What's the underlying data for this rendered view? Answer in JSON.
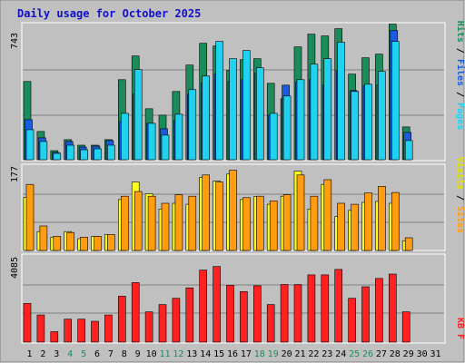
{
  "chart_data": {
    "type": "bar",
    "title": "Daily usage for October 2025",
    "x": {
      "categories": [
        "1",
        "2",
        "3",
        "4",
        "5",
        "6",
        "7",
        "8",
        "9",
        "10",
        "11",
        "12",
        "13",
        "14",
        "15",
        "16",
        "17",
        "18",
        "19",
        "20",
        "21",
        "22",
        "23",
        "24",
        "25",
        "26",
        "27",
        "28",
        "29",
        "30",
        "31"
      ],
      "weekend_days": [
        "4",
        "5",
        "11",
        "12",
        "18",
        "19",
        "25",
        "26"
      ]
    },
    "panels": [
      {
        "id": "hits-files-pages",
        "ymax_label": "743",
        "ymax": 743,
        "ylim": [
          0,
          743
        ],
        "axis_label_parts": [
          "Pages",
          "Files",
          "Hits"
        ],
        "series": [
          {
            "name": "Hits",
            "color": "#1a8c5a",
            "values": [
              430,
              155,
              50,
              110,
              80,
              80,
              110,
              440,
              570,
              280,
              245,
              375,
              520,
              640,
              625,
              490,
              550,
              555,
              420,
              335,
              620,
              690,
              680,
              720,
              470,
              560,
              580,
              745,
              180,
              0,
              0
            ]
          },
          {
            "name": "Files",
            "color": "#1a5ce0",
            "values": [
              220,
              120,
              40,
              100,
              70,
              75,
              105,
              210,
              360,
              200,
              170,
              215,
              360,
              420,
              470,
              430,
              440,
              475,
              245,
              410,
              425,
              440,
              410,
              490,
              380,
              405,
              410,
              710,
              150,
              0,
              0
            ]
          },
          {
            "name": "Pages",
            "color": "#1ed2f0",
            "values": [
              165,
              100,
              35,
              80,
              55,
              60,
              80,
              255,
              495,
              200,
              135,
              250,
              385,
              460,
              650,
              555,
              600,
              505,
              255,
              350,
              440,
              525,
              555,
              645,
              375,
              415,
              485,
              650,
              105,
              0,
              0
            ]
          }
        ]
      },
      {
        "id": "sites-visits",
        "ymax_label": "177",
        "ymax": 177,
        "ylim": [
          0,
          177
        ],
        "axis_label_parts": [
          "Sites",
          "Visits"
        ],
        "series": [
          {
            "name": "Visits",
            "color": "#ffff20",
            "values": [
              113,
              40,
              28,
              40,
              25,
              30,
              34,
              108,
              145,
              120,
              88,
              100,
              98,
              155,
              147,
              162,
              108,
              114,
              98,
              115,
              168,
              88,
              140,
              72,
              85,
              102,
              104,
              100,
              20,
              0,
              0
            ]
          },
          {
            "name": "Sites",
            "color": "#ff9c10",
            "values": [
              140,
              52,
              30,
              38,
              28,
              30,
              34,
              115,
              125,
              115,
              100,
              118,
              115,
              160,
              145,
              170,
              112,
              115,
              105,
              118,
              160,
              115,
              150,
              100,
              98,
              122,
              136,
              123,
              27,
              0,
              0
            ]
          }
        ]
      },
      {
        "id": "kbytes",
        "ymax_label": "4085",
        "ymax": 4085,
        "ylim": [
          0,
          4085
        ],
        "axis_label_parts": [
          "KB F"
        ],
        "series": [
          {
            "name": "KB F",
            "color": "#ff2020",
            "values": [
              1850,
              1300,
              500,
              1100,
              1100,
              1000,
              1300,
              2200,
              2850,
              1450,
              1800,
              2100,
              2600,
              3450,
              3620,
              2720,
              2420,
              2700,
              1800,
              2760,
              2760,
              3220,
              3220,
              3480,
              2100,
              2650,
              3050,
              3260,
              1450,
              0,
              0
            ]
          }
        ]
      }
    ]
  },
  "colors": {
    "page_background": "#ffffff",
    "chart_background": "#c0c0c0",
    "title_color": "#1010cc",
    "axis_text": "#000000",
    "weekend_text": "#1a8c5a",
    "gridline": "#808080"
  }
}
